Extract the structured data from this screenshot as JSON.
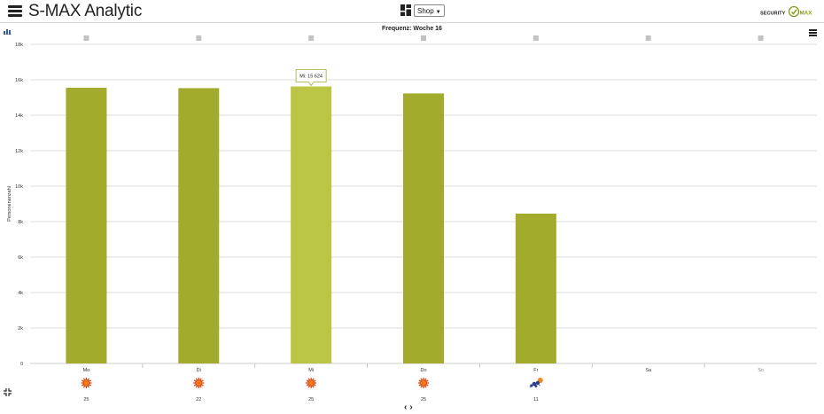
{
  "header": {
    "title": "S-MAX Analytic",
    "shop_select": "Shop",
    "logo_text_left": "SECURITY",
    "logo_text_right": "MAX",
    "logo_color": "#8a9a1f"
  },
  "chart_data": {
    "type": "bar",
    "title": "Frequenz: Woche 16",
    "ylabel": "Personenanzahl",
    "xlabel": "",
    "ylim": [
      0,
      18000
    ],
    "y_ticks": [
      "0",
      "2k",
      "4k",
      "6k",
      "8k",
      "10k",
      "12k",
      "14k",
      "16k",
      "18k"
    ],
    "categories": [
      "Mo",
      "Di",
      "Mi",
      "Do",
      "Fr",
      "Sa",
      "So"
    ],
    "values": [
      15550,
      15530,
      15624,
      15230,
      8450,
      0,
      0
    ],
    "temperatures": [
      "25",
      "22",
      "25",
      "25",
      "11",
      "",
      ""
    ],
    "weather_icons": [
      "sun-icon",
      "sun-icon",
      "sun-icon",
      "sun-icon",
      "rain-sun-icon",
      "",
      ""
    ],
    "grid": true,
    "bar_color": "#a2ab2c",
    "highlight_color": "#bbc644",
    "highlighted_index": 2,
    "tooltip": "Mi: 15 624"
  }
}
